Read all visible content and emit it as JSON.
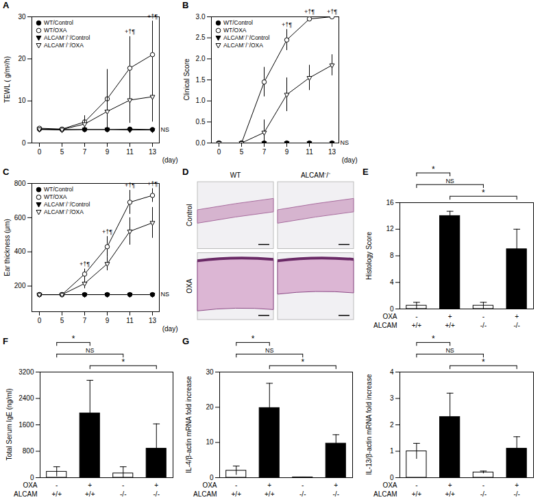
{
  "chart_data": [
    {
      "type": "line",
      "title": "A",
      "y_label": "TEWL ( g/m²/h)",
      "x_label": "(day)",
      "categories": [
        "0",
        "5",
        "7",
        "9",
        "11",
        "13"
      ],
      "ylim": [
        0,
        30
      ],
      "yticks": [
        0,
        10,
        20,
        30
      ],
      "legend": "top-left",
      "series": [
        {
          "name": "WT/Control",
          "color": "#000000",
          "marker": "circle",
          "values": [
            3.3,
            3.2,
            3.2,
            3.2,
            3.3,
            3.2
          ],
          "errors": [
            0.3,
            0.3,
            0.3,
            0.3,
            0.3,
            0.3
          ]
        },
        {
          "name": "WT/OXA",
          "color": "#000000",
          "marker": "circle-open",
          "values": [
            3.5,
            3.3,
            5.0,
            10.5,
            17.8,
            21.0
          ],
          "errors": [
            0.4,
            0.3,
            1.5,
            7.0,
            7.5,
            8.0
          ]
        },
        {
          "name": "ALCAM⁻/⁻/Control",
          "color": "#000000",
          "marker": "triangle-down",
          "values": [
            3.2,
            3.1,
            3.2,
            3.2,
            3.1,
            3.1
          ],
          "errors": [
            0.3,
            0.3,
            0.3,
            0.3,
            0.3,
            0.3
          ]
        },
        {
          "name": "ALCAM⁻/⁻/OXA",
          "color": "#000000",
          "marker": "triangle-down-open",
          "values": [
            3.3,
            3.2,
            4.5,
            7.5,
            10.2,
            11.0
          ],
          "errors": [
            0.3,
            0.3,
            1.2,
            4.0,
            5.5,
            6.0
          ]
        }
      ],
      "annotations": [
        {
          "x": "11",
          "label": "+†¶"
        },
        {
          "x": "13",
          "label": "+†¶"
        },
        {
          "x": "13",
          "series": "WT/Control",
          "label": "NS"
        }
      ]
    },
    {
      "type": "line",
      "title": "B",
      "y_label": "Clinical Score",
      "x_label": "(day)",
      "categories": [
        "0",
        "5",
        "7",
        "9",
        "11",
        "13"
      ],
      "ylim": [
        0,
        3
      ],
      "yticks": [
        {
          "value": 0,
          "label": "0.0"
        },
        {
          "value": 0.5,
          "label": "0.5"
        },
        {
          "value": 1,
          "label": "1.0"
        },
        {
          "value": 1.5,
          "label": "1.5"
        },
        {
          "value": 2,
          "label": "2.0"
        },
        {
          "value": 2.5,
          "label": "2.5"
        },
        {
          "value": 3,
          "label": "3.0"
        }
      ],
      "legend": "top-left",
      "series": [
        {
          "name": "WT/Control",
          "color": "#000000",
          "marker": "circle",
          "values": [
            0,
            0,
            0,
            0,
            0,
            0
          ],
          "errors": [
            0,
            0,
            0,
            0,
            0,
            0
          ]
        },
        {
          "name": "WT/OXA",
          "color": "#000000",
          "marker": "circle-open",
          "values": [
            0,
            0,
            1.45,
            2.45,
            2.95,
            3.0
          ],
          "errors": [
            0,
            0,
            0.35,
            0.25,
            0.05,
            0
          ]
        },
        {
          "name": "ALCAM⁻/⁻/Control",
          "color": "#000000",
          "marker": "triangle-down",
          "values": [
            0,
            0,
            0,
            0,
            0,
            0
          ],
          "errors": [
            0,
            0,
            0,
            0,
            0,
            0
          ]
        },
        {
          "name": "ALCAM⁻/⁻/OXA",
          "color": "#000000",
          "marker": "triangle-down-open",
          "values": [
            0,
            0,
            0.25,
            1.15,
            1.55,
            1.85
          ],
          "errors": [
            0,
            0,
            0.3,
            0.4,
            0.3,
            0.25
          ]
        }
      ],
      "annotations": [
        {
          "x": "9",
          "label": "+†¶"
        },
        {
          "x": "11",
          "label": "+†¶"
        },
        {
          "x": "13",
          "label": "+†¶"
        },
        {
          "x": "13",
          "series": "WT/Control",
          "label": "NS"
        }
      ]
    },
    {
      "type": "line",
      "title": "C",
      "y_label": "Ear thickness (μm)",
      "x_label": "(day)",
      "categories": [
        "0",
        "5",
        "7",
        "9",
        "11",
        "13"
      ],
      "ylim": [
        50,
        800
      ],
      "yticks": [
        200,
        400,
        600,
        800
      ],
      "legend": "top-left",
      "series": [
        {
          "name": "WT/Control",
          "color": "#000000",
          "marker": "circle",
          "values": [
            150,
            150,
            150,
            150,
            150,
            150
          ],
          "errors": [
            0,
            0,
            0,
            0,
            0,
            0
          ]
        },
        {
          "name": "WT/OXA",
          "color": "#000000",
          "marker": "circle-open",
          "values": [
            150,
            150,
            270,
            430,
            690,
            730
          ],
          "errors": [
            0,
            0,
            30,
            60,
            70,
            40
          ]
        },
        {
          "name": "ALCAM⁻/⁻/Control",
          "color": "#000000",
          "marker": "triangle-down",
          "values": [
            150,
            150,
            150,
            150,
            150,
            150
          ],
          "errors": [
            0,
            0,
            0,
            0,
            0,
            0
          ]
        },
        {
          "name": "ALCAM⁻/⁻/OXA",
          "color": "#000000",
          "marker": "triangle-down-open",
          "values": [
            150,
            150,
            215,
            330,
            520,
            570
          ],
          "errors": [
            0,
            0,
            30,
            40,
            80,
            90
          ]
        }
      ],
      "annotations": [
        {
          "x": "7",
          "label": "+†¶"
        },
        {
          "x": "9",
          "label": "+†¶"
        },
        {
          "x": "11",
          "label": "+†¶"
        },
        {
          "x": "13",
          "label": "+†¶"
        },
        {
          "x": "13",
          "series": "WT/Control",
          "label": "NS"
        }
      ]
    },
    {
      "type": "image",
      "title": "D",
      "columns": [
        "WT",
        "ALCAM⁻/⁻"
      ],
      "rows": [
        "Control",
        "OXA"
      ]
    },
    {
      "type": "bar",
      "title": "E",
      "y_label": "Histology Score",
      "x_rows": [
        {
          "name": "OXA",
          "labels": [
            "-",
            "+",
            "-",
            "+"
          ]
        },
        {
          "name": "ALCAM",
          "labels": [
            "+/+",
            "+/+",
            "-/-",
            "-/-"
          ]
        }
      ],
      "values": [
        0.5,
        14,
        0.5,
        9
      ],
      "errors": [
        0.5,
        0.7,
        0.5,
        3
      ],
      "colors": [
        "#ffffff",
        "#000000",
        "#ffffff",
        "#000000"
      ],
      "ylim": [
        0,
        16
      ],
      "yticks": [
        0,
        4,
        8,
        12,
        16
      ],
      "comparisons": [
        {
          "from": 0,
          "to": 1,
          "label": "*"
        },
        {
          "from": 0,
          "to": 2,
          "label": "NS"
        },
        {
          "from": 1,
          "to": 3,
          "label": "*"
        }
      ]
    },
    {
      "type": "bar",
      "title": "F",
      "y_label": "Total Serum IgE (ng/ml)",
      "x_rows": [
        {
          "name": "OXA",
          "labels": [
            "-",
            "+",
            "-",
            "+"
          ]
        },
        {
          "name": "ALCAM",
          "labels": [
            "+/+",
            "+/+",
            "-/-",
            "-/-"
          ]
        }
      ],
      "values": [
        180,
        1950,
        130,
        880
      ],
      "errors": [
        150,
        1000,
        200,
        750
      ],
      "colors": [
        "#ffffff",
        "#000000",
        "#ffffff",
        "#000000"
      ],
      "ylim": [
        0,
        3200
      ],
      "yticks": [
        0,
        800,
        1600,
        2400,
        3200
      ],
      "comparisons": [
        {
          "from": 0,
          "to": 1,
          "label": "*"
        },
        {
          "from": 0,
          "to": 2,
          "label": "NS"
        },
        {
          "from": 1,
          "to": 3,
          "label": "*"
        }
      ]
    },
    {
      "type": "bar",
      "title": "G",
      "y_label": "IL-4/β-actin mRNA fold increase",
      "x_rows": [
        {
          "name": "OXA",
          "labels": [
            "-",
            "+",
            "-",
            "+"
          ]
        },
        {
          "name": "ALCAM",
          "labels": [
            "+/+",
            "+/+",
            "-/-",
            "-/-"
          ]
        }
      ],
      "values": [
        2,
        19.8,
        0.1,
        9.7
      ],
      "errors": [
        1.3,
        7,
        0.1,
        2.5
      ],
      "colors": [
        "#ffffff",
        "#000000",
        "#ffffff",
        "#000000"
      ],
      "ylim": [
        0,
        30
      ],
      "yticks": [
        0,
        10,
        20,
        30
      ],
      "comparisons": [
        {
          "from": 0,
          "to": 1,
          "label": "*"
        },
        {
          "from": 0,
          "to": 2,
          "label": "NS"
        },
        {
          "from": 1,
          "to": 3,
          "label": "*"
        }
      ]
    },
    {
      "type": "bar",
      "y_label": "IL-13/β-actin mRNA fold increase",
      "x_rows": [
        {
          "name": "OXA",
          "labels": [
            "-",
            "+",
            "-",
            "+"
          ]
        },
        {
          "name": "ALCAM",
          "labels": [
            "+/+",
            "+/+",
            "-/-",
            "-/-"
          ]
        }
      ],
      "values": [
        1.0,
        2.3,
        0.2,
        1.1
      ],
      "errors": [
        0.3,
        0.9,
        0.05,
        0.45
      ],
      "colors": [
        "#ffffff",
        "#000000",
        "#ffffff",
        "#000000"
      ],
      "ylim": [
        0,
        4
      ],
      "yticks": [
        0,
        1,
        2,
        3,
        4
      ],
      "comparisons": [
        {
          "from": 0,
          "to": 1,
          "label": "*"
        },
        {
          "from": 0,
          "to": 2,
          "label": "NS"
        },
        {
          "from": 1,
          "to": 3,
          "label": "*"
        }
      ]
    }
  ]
}
